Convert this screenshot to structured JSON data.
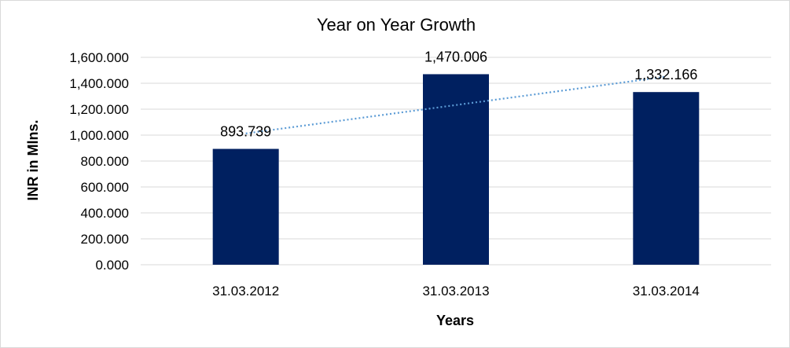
{
  "chart_data": {
    "type": "bar",
    "title": "Year on Year Growth",
    "xlabel": "Years",
    "ylabel": "INR in Mlns.",
    "categories": [
      "31.03.2012",
      "31.03.2013",
      "31.03.2014"
    ],
    "values": [
      893.739,
      1470.006,
      1332.166
    ],
    "data_labels": [
      "893.739",
      "1,470.006",
      "1,332.166"
    ],
    "ylim": [
      0,
      1600
    ],
    "y_ticks": [
      0,
      200,
      400,
      600,
      800,
      1000,
      1200,
      1400,
      1600
    ],
    "y_tick_labels": [
      "0.000",
      "200.000",
      "400.000",
      "600.000",
      "800.000",
      "1,000.000",
      "1,200.000",
      "1,400.000",
      "1,600.000"
    ],
    "grid": true,
    "legend": "none",
    "trendline": {
      "type": "linear",
      "style": "dotted",
      "color": "#5b9bd5"
    },
    "bar_color": "#002060",
    "gridline_color": "#d9d9d9"
  }
}
